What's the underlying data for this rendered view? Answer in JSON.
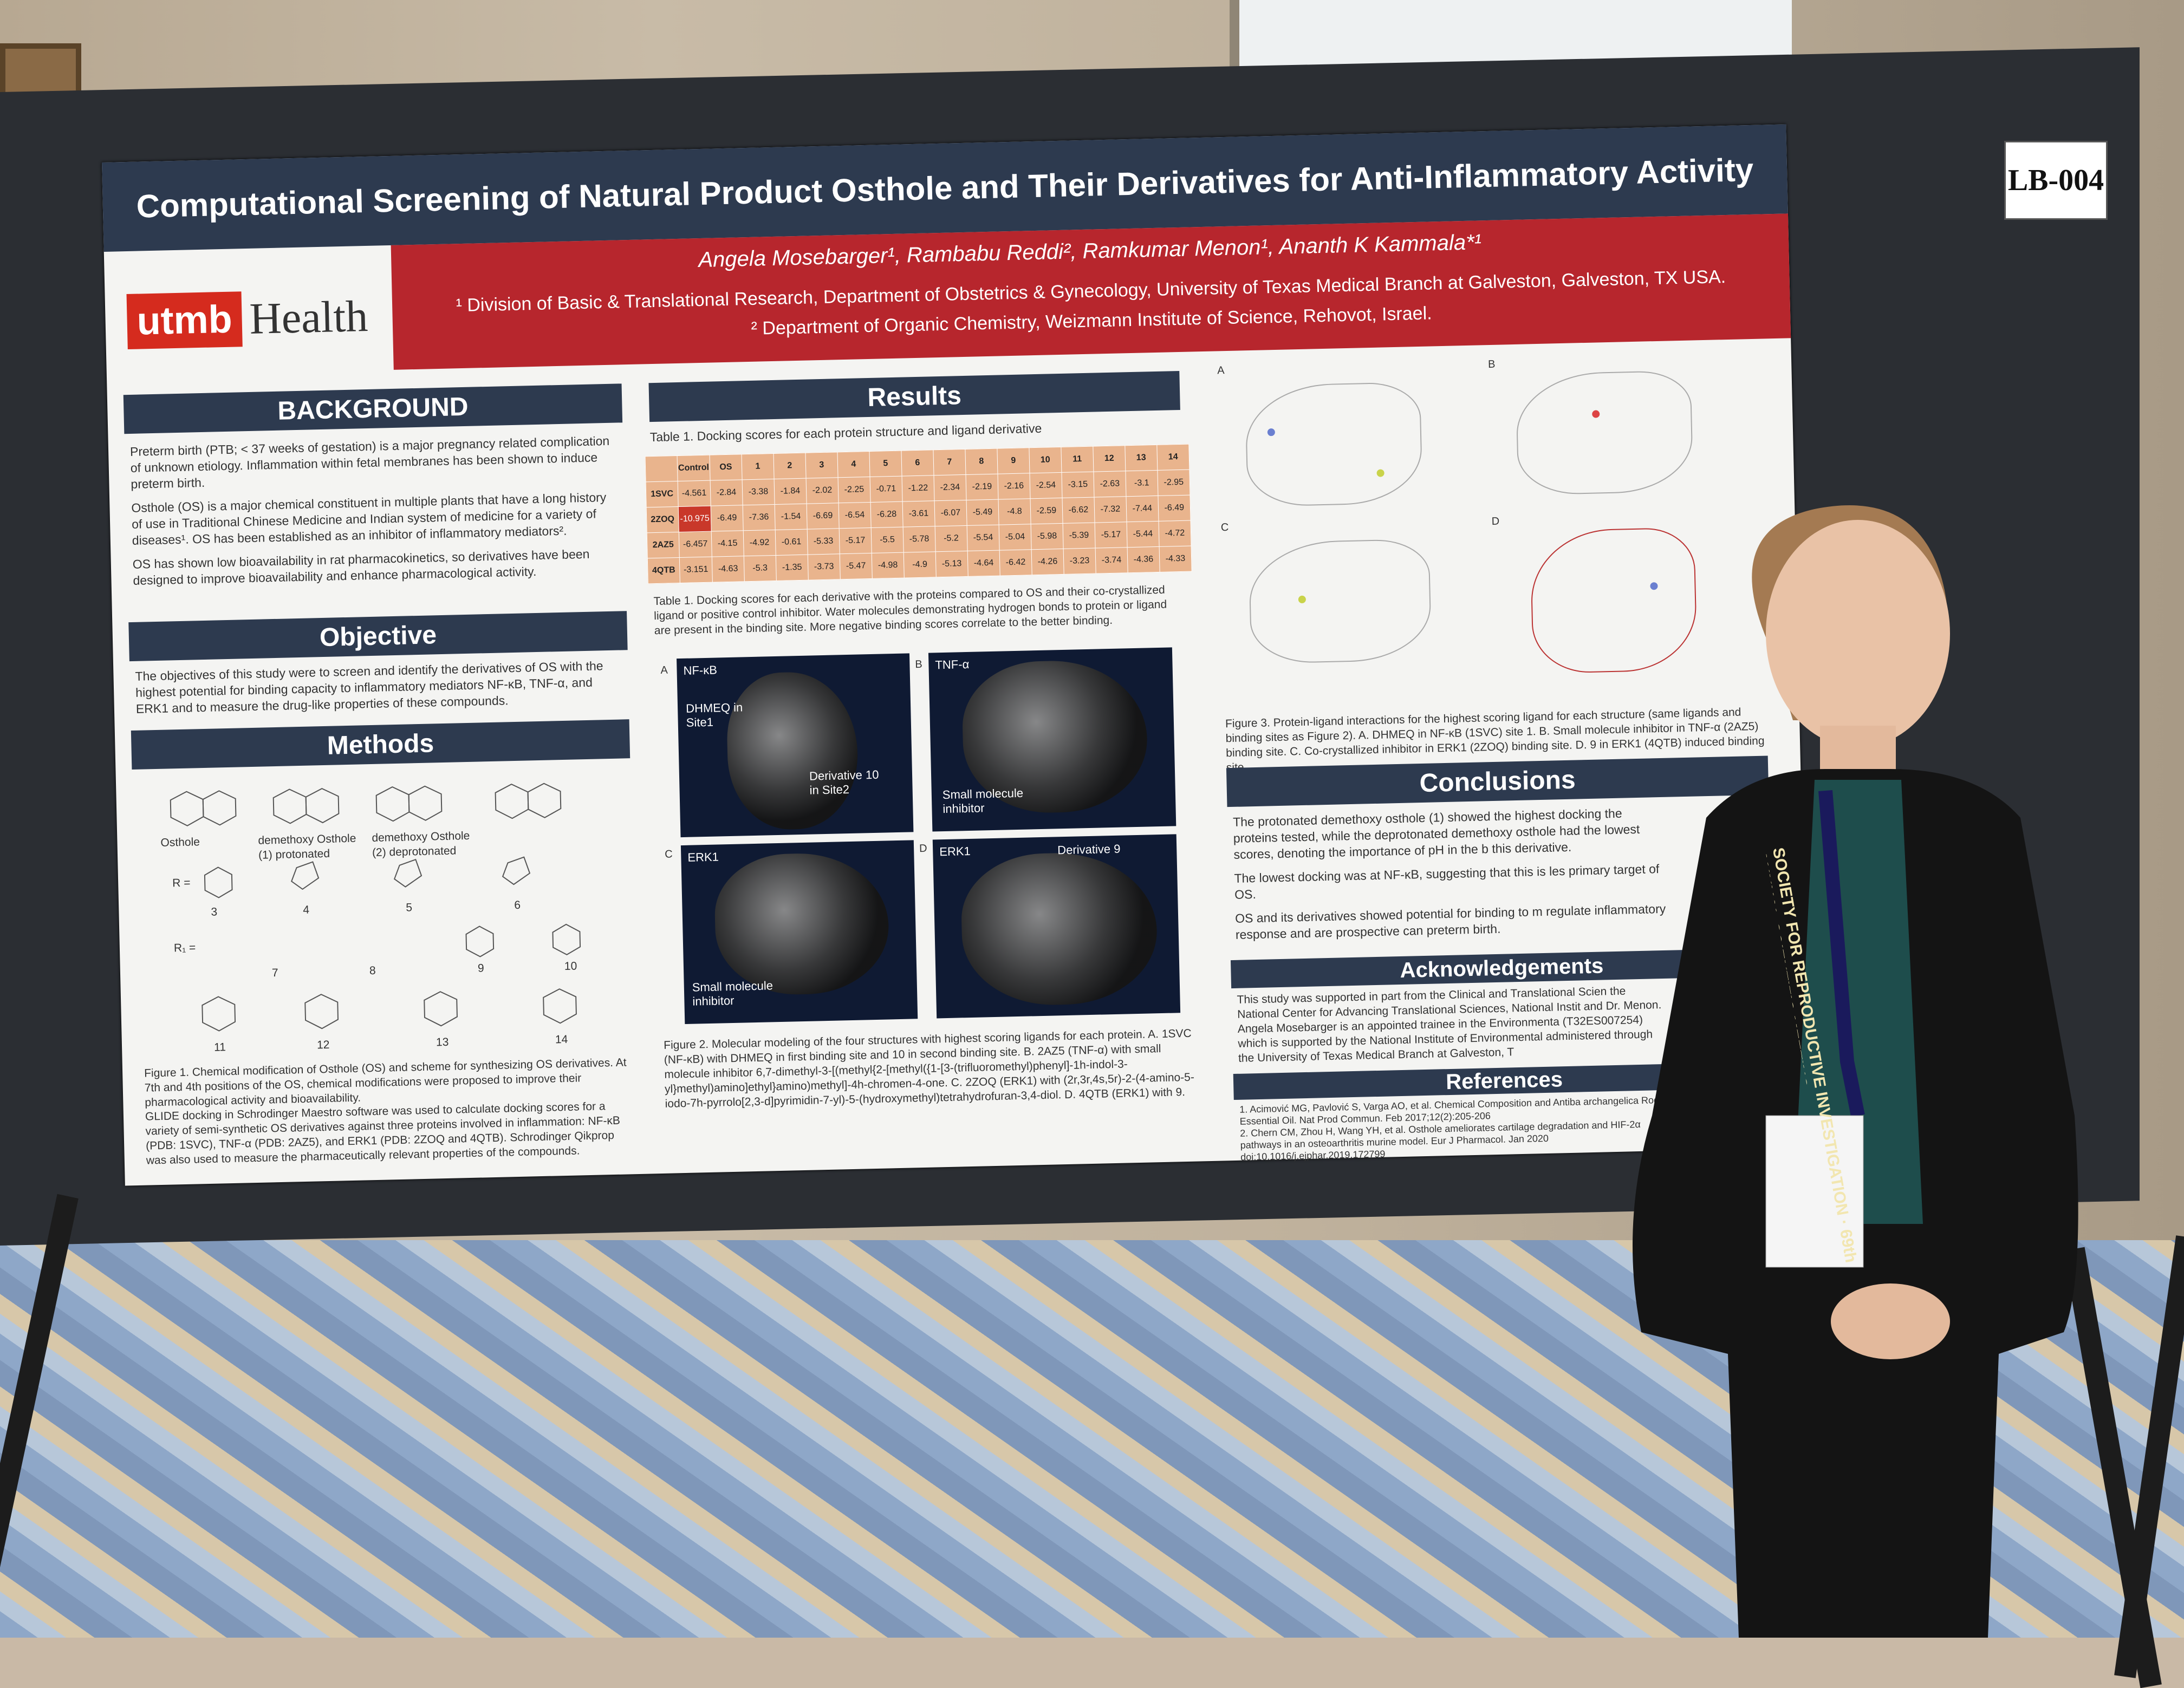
{
  "booth_tag": "LB-004",
  "poster": {
    "title": "Computational Screening of Natural Product Osthole and Their Derivatives for Anti-Inflammatory Activity",
    "authors": "Angela Mosebarger¹, Rambabu Reddi², Ramkumar Menon¹, Ananth K Kammala*¹",
    "affiliation_1": "¹ Division of Basic & Translational Research, Department of Obstetrics & Gynecology, University of Texas Medical Branch at Galveston, Galveston, TX USA.",
    "affiliation_2": "² Department of Organic Chemistry, Weizmann Institute of Science, Rehovot, Israel.",
    "logo": {
      "mark": "utmb",
      "word": "Health"
    },
    "background": {
      "heading": "BACKGROUND",
      "p1": "Preterm birth (PTB; < 37 weeks of gestation) is a major pregnancy related complication of unknown etiology. Inflammation within fetal membranes has been shown to induce preterm birth.",
      "p2": "Osthole (OS) is a major chemical constituent in multiple plants that have a long history of use in Traditional Chinese Medicine and Indian system of medicine for a variety of diseases¹. OS has been established as an inhibitor of inflammatory mediators².",
      "p3": "OS has shown low bioavailability in rat pharmacokinetics, so derivatives have been designed to improve bioavailability and enhance pharmacological activity."
    },
    "objective": {
      "heading": "Objective",
      "text": "The objectives of this study were to screen and identify the derivatives of OS with the highest potential for binding capacity to inflammatory mediators NF-κB, TNF-α, and ERK1 and to measure the drug-like properties of these compounds."
    },
    "methods": {
      "heading": "Methods",
      "mol_labels": [
        "Osthole",
        "demethoxy Osthole (1) protonated",
        "demethoxy Osthole (2) deprotonated"
      ],
      "r_label": "R =",
      "r1_label": "R₁ =",
      "compound_numbers": [
        "3",
        "4",
        "5",
        "6",
        "7",
        "8",
        "9",
        "10",
        "11",
        "12",
        "13",
        "14"
      ],
      "figure_caption": "Figure 1. Chemical modification of Osthole (OS) and scheme for synthesizing OS derivatives. At 7th and 4th positions of the OS, chemical modifications were proposed to improve their pharmacological activity and bioavailability.",
      "glide_text": "GLIDE docking in Schrodinger Maestro software was used to calculate docking scores for a variety of semi-synthetic OS derivatives against three proteins involved in inflammation: NF-κB (PDB: 1SVC), TNF-α (PDB: 2AZ5), and ERK1 (PDB: 2ZOQ and 4QTB). Schrodinger Qikprop was also used to measure the pharmaceutically relevant properties of the compounds."
    },
    "results": {
      "heading": "Results",
      "table_title": "Table 1. Docking scores for each protein structure and ligand derivative",
      "table_columns": [
        "",
        "Control",
        "OS",
        "1",
        "2",
        "3",
        "4",
        "5",
        "6",
        "7",
        "8",
        "9",
        "10",
        "11",
        "12",
        "13",
        "14"
      ],
      "table_rows": [
        [
          "1SVC",
          "-4.561",
          "-2.84",
          "-3.38",
          "-1.84",
          "-2.02",
          "-2.25",
          "-0.71",
          "-1.22",
          "-2.34",
          "-2.19",
          "-2.16",
          "-2.54",
          "-3.15",
          "-2.63",
          "-3.1",
          "-2.95"
        ],
        [
          "2ZOQ",
          "-10.975",
          "-6.49",
          "-7.36",
          "-1.54",
          "-6.69",
          "-6.54",
          "-6.28",
          "-3.61",
          "-6.07",
          "-5.49",
          "-4.8",
          "-2.59",
          "-6.62",
          "-7.32",
          "-7.44",
          "-6.49"
        ],
        [
          "2AZ5",
          "-6.457",
          "-4.15",
          "-4.92",
          "-0.61",
          "-5.33",
          "-5.17",
          "-5.5",
          "-5.78",
          "-5.2",
          "-5.54",
          "-5.04",
          "-5.98",
          "-5.39",
          "-5.17",
          "-5.44",
          "-4.72"
        ],
        [
          "4QTB",
          "-3.151",
          "-4.63",
          "-5.3",
          "-1.35",
          "-3.73",
          "-5.47",
          "-4.98",
          "-4.9",
          "-5.13",
          "-4.64",
          "-6.42",
          "-4.26",
          "-3.23",
          "-3.74",
          "-4.36",
          "-4.33"
        ]
      ],
      "table_caption": "Table 1. Docking scores for each derivative with the proteins compared to OS and their co-crystallized ligand or positive control inhibitor. Water molecules demonstrating hydrogen bonds to protein or ligand are present in the binding site. More negative binding scores correlate to the better binding.",
      "panels": [
        {
          "letter": "A",
          "title": "NF-κB",
          "label1": "DHMEQ in Site1",
          "label2": "Derivative 10 in Site2"
        },
        {
          "letter": "B",
          "title": "TNF-α",
          "label1": "Small molecule inhibitor",
          "label2": ""
        },
        {
          "letter": "C",
          "title": "ERK1",
          "label1": "Small molecule inhibitor",
          "label2": ""
        },
        {
          "letter": "D",
          "title": "ERK1",
          "label1": "Derivative 9",
          "label2": ""
        }
      ],
      "figure2_caption": "Figure 2. Molecular modeling of the four structures with highest scoring ligands for each protein. A. 1SVC (NF-κB) with DHMEQ in first binding site and 10 in second binding site. B. 2AZ5 (TNF-α) with small molecule inhibitor 6,7-dimethyl-3-[(methyl{2-[methyl({1-[3-(trifluoromethyl)phenyl]-1h-indol-3-yl}methyl)amino]ethyl}amino)methyl]-4h-chromen-4-one. C. 2ZOQ (ERK1) with (2r,3r,4s,5r)-2-(4-amino-5-iodo-7h-pyrrolo[2,3-d]pyrimidin-7-yl)-5-(hydroxymethyl)tetrahydrofuran-3,4-diol. D. 4QTB (ERK1) with 9."
    },
    "figure3": {
      "letters": [
        "A",
        "B",
        "C",
        "D"
      ],
      "caption": "Figure 3. Protein-ligand interactions for the highest scoring ligand for each structure (same ligands and binding sites as Figure 2). A. DHMEQ in NF-κB (1SVC) site 1. B. Small molecule inhibitor in TNF-α (2AZ5) binding site. C. Co-crystallized inhibitor in ERK1 (2ZOQ) binding site. D. 9 in ERK1 (4QTB) induced binding site."
    },
    "conclusions": {
      "heading": "Conclusions",
      "c1": "The protonated demethoxy osthole (1) showed the highest docking the proteins tested, while the deprotonated demethoxy osthole had the lowest scores, denoting the importance of pH in the b this derivative.",
      "c2": "The lowest docking was at NF-κB, suggesting that this is les primary target of OS.",
      "c3": "OS and its derivatives showed potential for binding to m regulate inflammatory response and are prospective can preterm birth."
    },
    "acknowledgements": {
      "heading": "Acknowledgements",
      "a1": "This study was supported in part from the Clinical and Translational Scien the National Center for Advancing Translational Sciences, National Instit and Dr. Menon.",
      "a2": "Angela Mosebarger is an appointed trainee in the Environmenta (T32ES007254) which is supported by the National Institute of Environmental administered through the University of Texas Medical Branch at Galveston, T"
    },
    "references": {
      "heading": "References",
      "r1": "1. Acimović MG, Pavlović S, Varga AO, et al. Chemical Composition and Antiba archangelica Root Essential Oil. Nat Prod Commun. Feb 2017;12(2):205-206",
      "r2": "2. Chern CM, Zhou H, Wang YH, et al. Osthole ameliorates cartilage degradation and HIF-2α pathways in an osteoarthritis murine model. Eur J Pharmacol. Jan 2020 doi:10.1016/j.ejphar.2019.172799"
    }
  },
  "lanyard_text": "SOCIETY FOR REPRODUCTIVE INVESTIGATION · 69th ANNUAL SCIENTIFIC MEETING"
}
